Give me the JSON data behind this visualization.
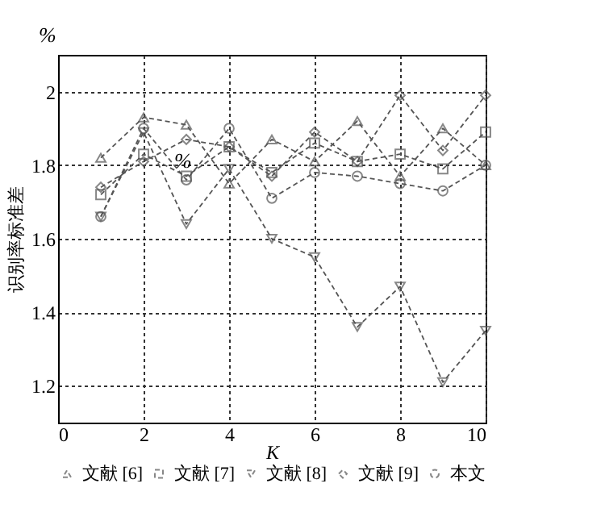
{
  "chart_data": {
    "type": "line",
    "xlabel": "K",
    "ylabel": "识别率标准差",
    "annotations": [
      "%",
      "%"
    ],
    "x": [
      1,
      2,
      3,
      4,
      5,
      6,
      7,
      8,
      9,
      10
    ],
    "series": [
      {
        "name": "文献 [6]",
        "color": "#555555",
        "marker": "triangle",
        "values": [
          1.82,
          1.93,
          1.91,
          1.75,
          1.87,
          1.81,
          1.92,
          1.77,
          1.9,
          1.8
        ]
      },
      {
        "name": "文献 [7]",
        "color": "#555555",
        "marker": "square",
        "values": [
          1.72,
          1.83,
          1.77,
          1.85,
          1.78,
          1.86,
          1.81,
          1.83,
          1.79,
          1.89
        ]
      },
      {
        "name": "文献 [8]",
        "color": "#555555",
        "marker": "triangle-down",
        "values": [
          1.66,
          1.89,
          1.64,
          1.79,
          1.6,
          1.55,
          1.36,
          1.47,
          1.21,
          1.35
        ]
      },
      {
        "name": "文献 [9]",
        "color": "#555555",
        "marker": "diamond",
        "values": [
          1.74,
          1.81,
          1.87,
          1.85,
          1.77,
          1.89,
          1.81,
          1.99,
          1.84,
          1.99
        ]
      },
      {
        "name": "本文",
        "color": "#555555",
        "marker": "circle",
        "values": [
          1.66,
          1.9,
          1.76,
          1.9,
          1.71,
          1.78,
          1.77,
          1.75,
          1.73,
          1.8
        ]
      }
    ],
    "xlim": [
      0,
      10
    ],
    "xticks": [
      0,
      2,
      4,
      6,
      8,
      10
    ],
    "ylim": [
      1.1,
      2.1
    ],
    "yticks": [
      1.2,
      1.4,
      1.6,
      1.8,
      2
    ],
    "grid": true,
    "legend": "bottom",
    "line_style": "dashed"
  }
}
